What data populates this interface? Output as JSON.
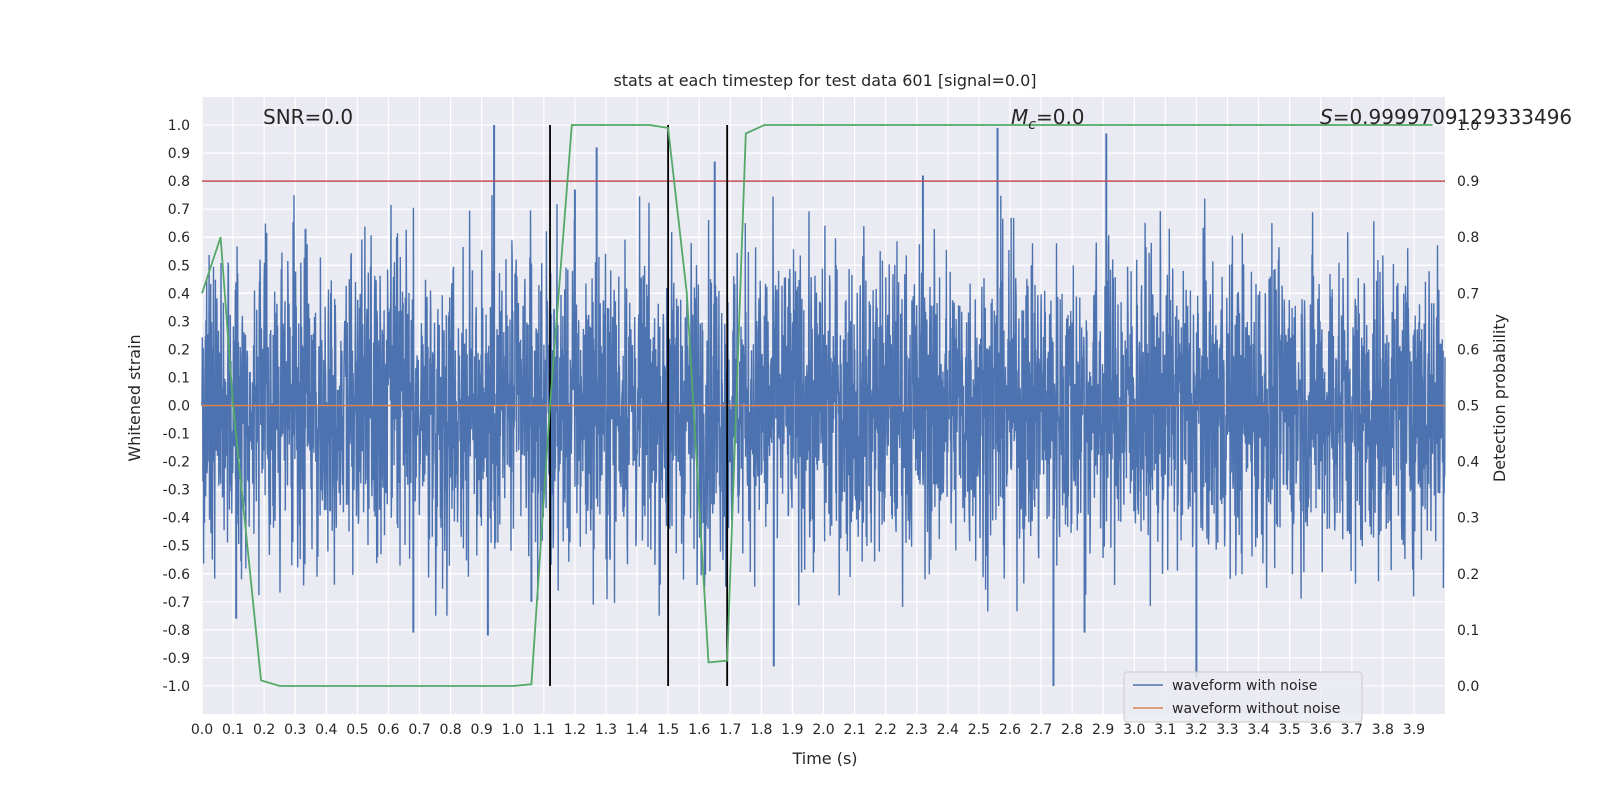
{
  "chart_data": {
    "type": "line",
    "title": "stats at each timestep for test data 601 [signal=0.0]",
    "xlabel": "Time (s)",
    "ylabel": "Whitened strain",
    "y2label": "Detection probability",
    "xlim": [
      0.0,
      4.0
    ],
    "ylim": [
      -1.1,
      1.1
    ],
    "y2lim": [
      -0.05,
      1.05
    ],
    "x_ticks": [
      0.0,
      0.1,
      0.2,
      0.3,
      0.4,
      0.5,
      0.6,
      0.7,
      0.8,
      0.9,
      1.0,
      1.1,
      1.2,
      1.3,
      1.4,
      1.5,
      1.6,
      1.7,
      1.8,
      1.9,
      2.0,
      2.1,
      2.2,
      2.3,
      2.4,
      2.5,
      2.6,
      2.7,
      2.8,
      2.9,
      3.0,
      3.1,
      3.2,
      3.3,
      3.4,
      3.5,
      3.6,
      3.7,
      3.8,
      3.9
    ],
    "y_ticks": [
      1.0,
      0.9,
      0.8,
      0.7,
      0.6,
      0.5,
      0.4,
      0.3,
      0.2,
      0.1,
      0.0,
      -0.1,
      -0.2,
      -0.3,
      -0.4,
      -0.5,
      -0.6,
      -0.7,
      -0.8,
      -0.9,
      -1.0
    ],
    "y2_ticks": [
      1.0,
      0.9,
      0.8,
      0.7,
      0.6,
      0.5,
      0.4,
      0.3,
      0.2,
      0.1,
      0.0
    ],
    "grid": true,
    "legend_position": "lower-right",
    "annotations": {
      "snr": "SNR=0.0",
      "mc_symbol": "M",
      "mc_sub": "c",
      "mc_value": "=0.0",
      "s_symbol": "S",
      "s_value": "=0.9999709129333496"
    },
    "threshold": {
      "y2": 0.9,
      "color": "#c44e52"
    },
    "vlines": [
      1.12,
      1.5,
      1.69
    ],
    "series": [
      {
        "name": "waveform with noise",
        "color": "#4c72b0",
        "kind": "noise",
        "envelope": 0.45,
        "peaks": [
          {
            "x": 0.94,
            "y": 1.0
          },
          {
            "x": 1.27,
            "y": 0.92
          },
          {
            "x": 1.65,
            "y": 0.87
          },
          {
            "x": 2.56,
            "y": 0.99
          },
          {
            "x": 2.91,
            "y": 0.97
          },
          {
            "x": 2.32,
            "y": 0.82
          },
          {
            "x": 1.2,
            "y": 0.77
          },
          {
            "x": 0.11,
            "y": -0.76
          },
          {
            "x": 0.92,
            "y": -0.82
          },
          {
            "x": 0.68,
            "y": -0.81
          },
          {
            "x": 1.84,
            "y": -0.93
          },
          {
            "x": 2.74,
            "y": -1.0
          },
          {
            "x": 3.2,
            "y": -0.97
          },
          {
            "x": 2.84,
            "y": -0.81
          },
          {
            "x": 1.06,
            "y": -0.7
          }
        ]
      },
      {
        "name": "waveform without noise",
        "color": "#dd8452",
        "kind": "flat",
        "value": 0.0
      },
      {
        "name": "detection probability",
        "color": "#55a868",
        "axis": "y2",
        "x": [
          0.0,
          0.06,
          0.1,
          0.19,
          0.25,
          1.0,
          1.06,
          1.12,
          1.19,
          1.44,
          1.5,
          1.56,
          1.63,
          1.69,
          1.75,
          1.81,
          3.96
        ],
        "y": [
          0.7,
          0.8,
          0.5,
          0.01,
          0.0,
          0.0,
          0.003,
          0.5,
          1.0,
          1.0,
          0.995,
          0.7,
          0.042,
          0.045,
          0.985,
          1.0,
          1.0
        ]
      }
    ]
  }
}
